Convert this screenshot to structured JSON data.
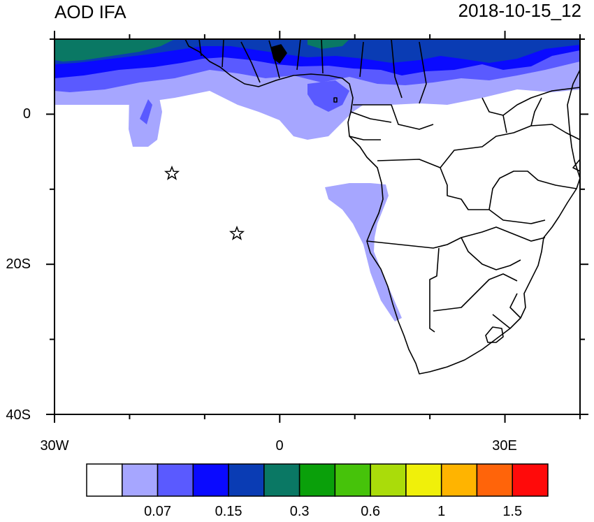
{
  "title_left": "AOD IFA",
  "title_right": "2018-10-15_12",
  "axes": {
    "lon_range": [
      -30,
      40
    ],
    "lat_range": [
      -40,
      10
    ],
    "x_ticks": [
      {
        "lon": -30,
        "label": "30W"
      },
      {
        "lon": 0,
        "label": "0"
      },
      {
        "lon": 30,
        "label": "30E"
      }
    ],
    "y_ticks": [
      {
        "lat": 0,
        "label": "0"
      },
      {
        "lat": -20,
        "label": "20S"
      },
      {
        "lat": -40,
        "label": "40S"
      }
    ],
    "x_minor": [
      -20,
      -10,
      10,
      20,
      40
    ],
    "y_minor": [
      10,
      -10,
      -30
    ]
  },
  "colorbar": {
    "colors": [
      "#ffffff",
      "#a6a6ff",
      "#5a5aff",
      "#0a0aff",
      "#0a3cb4",
      "#0a7864",
      "#0aa00a",
      "#46c30a",
      "#aadc0a",
      "#f0f00a",
      "#ffb400",
      "#ff640a",
      "#ff0a0a"
    ],
    "labels": [
      {
        "after_box": 2,
        "text": "0.07"
      },
      {
        "after_box": 4,
        "text": "0.15"
      },
      {
        "after_box": 6,
        "text": "0.3"
      },
      {
        "after_box": 8,
        "text": "0.6"
      },
      {
        "after_box": 10,
        "text": "1"
      },
      {
        "after_box": 12,
        "text": "1.5"
      }
    ]
  },
  "markers": [
    {
      "name": "star-marker",
      "lon": -14.5,
      "lat": -8.0
    },
    {
      "name": "star-marker",
      "lon": -5.7,
      "lat": -15.9
    }
  ]
}
